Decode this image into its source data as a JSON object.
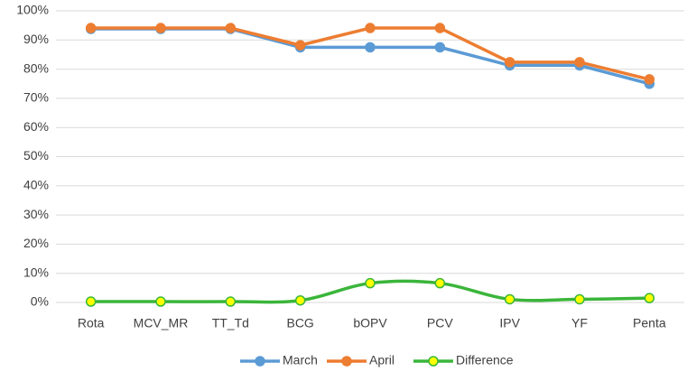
{
  "chart_data": {
    "type": "line",
    "categories": [
      "Rota",
      "MCV_MR",
      "TT_Td",
      "BCG",
      "bOPV",
      "PCV",
      "IPV",
      "YF",
      "Penta"
    ],
    "series": [
      {
        "name": "March",
        "color": "#5b9bd5",
        "marker_color": "#5b9bd5",
        "values": [
          93.8,
          93.8,
          93.8,
          87.5,
          87.5,
          87.5,
          81.3,
          81.3,
          75.0
        ]
      },
      {
        "name": "April",
        "color": "#ed7d31",
        "marker_color": "#ed7d31",
        "values": [
          94.1,
          94.1,
          94.1,
          88.2,
          94.1,
          94.1,
          82.4,
          82.4,
          76.5
        ]
      },
      {
        "name": "Difference",
        "color": "#3ab53a",
        "marker_color": "#ffff00",
        "smooth": true,
        "values": [
          0.3,
          0.3,
          0.3,
          0.7,
          6.6,
          6.6,
          1.1,
          1.1,
          1.5
        ]
      }
    ],
    "ylim": [
      0,
      100
    ],
    "yticks": [
      {
        "value": 0,
        "label": "0%"
      },
      {
        "value": 10,
        "label": "10%"
      },
      {
        "value": 20,
        "label": "20%"
      },
      {
        "value": 30,
        "label": "30%"
      },
      {
        "value": 40,
        "label": "40%"
      },
      {
        "value": 50,
        "label": "50%"
      },
      {
        "value": 60,
        "label": "60%"
      },
      {
        "value": 70,
        "label": "70%"
      },
      {
        "value": 80,
        "label": "80%"
      },
      {
        "value": 90,
        "label": "90%"
      },
      {
        "value": 100,
        "label": "100%"
      }
    ],
    "grid": true,
    "legend": "bottom"
  }
}
